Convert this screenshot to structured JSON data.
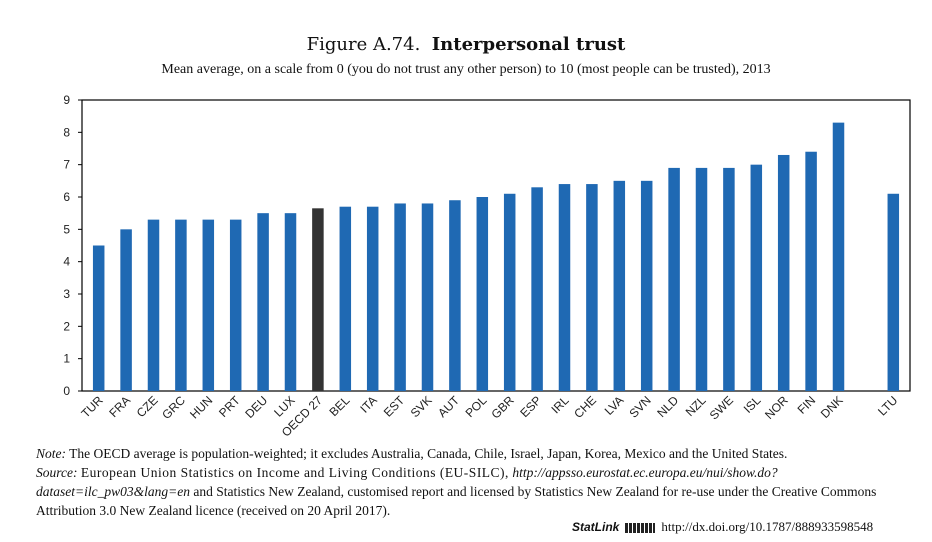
{
  "header": {
    "figure_label": "Figure A.74.",
    "title": "Interpersonal trust",
    "subtitle": "Mean average, on a scale from 0 (you do not trust any other person) to 10 (most people can be trusted), 2013"
  },
  "chart_data": {
    "type": "bar",
    "categories": [
      "TUR",
      "FRA",
      "CZE",
      "GRC",
      "HUN",
      "PRT",
      "DEU",
      "LUX",
      "OECD 27",
      "BEL",
      "ITA",
      "EST",
      "SVK",
      "AUT",
      "POL",
      "GBR",
      "ESP",
      "IRL",
      "CHE",
      "LVA",
      "SVN",
      "NLD",
      "NZL",
      "SWE",
      "ISL",
      "NOR",
      "FIN",
      "DNK",
      "LTU"
    ],
    "values": [
      4.5,
      5.0,
      5.3,
      5.3,
      5.3,
      5.3,
      5.5,
      5.5,
      5.65,
      5.7,
      5.7,
      5.8,
      5.8,
      5.9,
      6.0,
      6.1,
      6.3,
      6.4,
      6.4,
      6.5,
      6.5,
      6.9,
      6.9,
      6.9,
      7.0,
      7.3,
      7.4,
      8.3,
      6.1
    ],
    "highlight": "OECD 27",
    "ylim": [
      0,
      9
    ],
    "yticks": [
      0,
      1,
      2,
      3,
      4,
      5,
      6,
      7,
      8,
      9
    ],
    "gap_before": "LTU",
    "grid": false,
    "colors": {
      "bar": "#1f69b3",
      "highlight": "#333333"
    }
  },
  "notes": {
    "note_label": "Note:",
    "note_text": "The OECD average is population-weighted; it excludes Australia, Canada, Chile, Israel, Japan, Korea, Mexico and the United States.",
    "source_label": "Source:",
    "source_text_1": "European Union Statistics on Income and Living Conditions (EU-SILC),",
    "source_url": "http://appsso.eurostat.ec.europa.eu/nui/show.do?dataset=ilc_pw03&lang=en",
    "source_text_2": "and Statistics New Zealand, customised report and licensed by Statistics New Zealand for re-use under the Creative Commons Attribution 3.0 New Zealand licence (received on 20 April 2017)."
  },
  "statlink": {
    "label": "StatLink",
    "url": "http://dx.doi.org/10.1787/888933598548"
  }
}
